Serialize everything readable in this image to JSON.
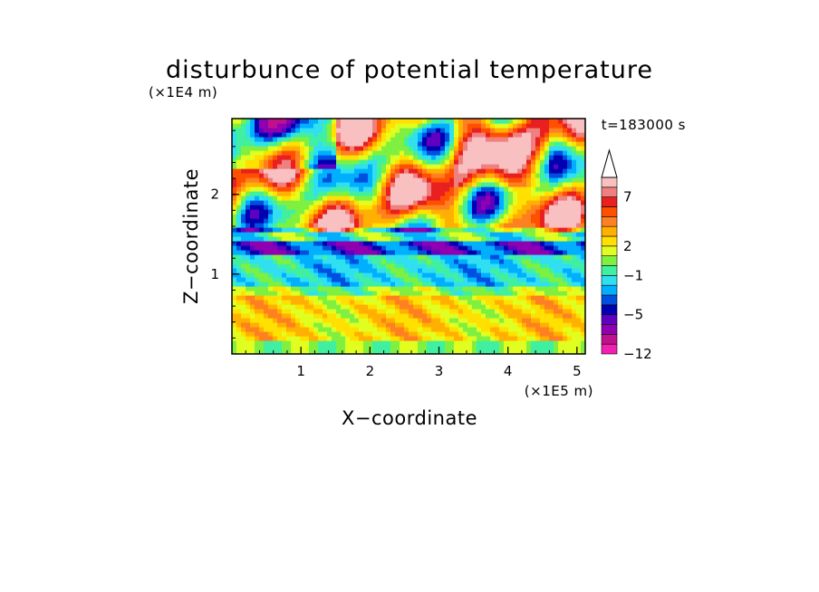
{
  "chart_data": {
    "type": "heatmap",
    "title": "disturbunce of potential temperature",
    "xlabel": "X−coordinate",
    "ylabel": "Z−coordinate",
    "x_unit": "(×1E5 m)",
    "y_unit": "(×1E4 m)",
    "time_label": "t=183000 s",
    "xlim": [
      0,
      5.12
    ],
    "ylim": [
      0,
      2.95
    ],
    "x_ticks": [
      1,
      2,
      3,
      4,
      5
    ],
    "x_tick_labels": [
      "1",
      "2",
      "3",
      "4",
      "5"
    ],
    "y_ticks": [
      1,
      2
    ],
    "y_tick_labels": [
      "1",
      "2"
    ],
    "colorbar": {
      "levels": [
        -12,
        -10,
        -8,
        -6,
        -5,
        -4,
        -3,
        -2,
        -1,
        0,
        1,
        2,
        3,
        4,
        5,
        6,
        7,
        8,
        9
      ],
      "colors": [
        "#f020b0",
        "#c01090",
        "#9000b0",
        "#6000c0",
        "#0000b0",
        "#0050e0",
        "#00b0ff",
        "#30e0f0",
        "#40f0a0",
        "#80f040",
        "#e0ff20",
        "#ffe000",
        "#ffb000",
        "#ff8020",
        "#ff5000",
        "#e82020",
        "#f08080",
        "#f8c0c0"
      ],
      "extend": "max",
      "tick_values": [
        -12,
        -5,
        -1,
        2,
        7
      ],
      "tick_labels": [
        "−12",
        "−5",
        "−1",
        "2",
        "7"
      ]
    },
    "field_description_bands": [
      {
        "z_from": 0.0,
        "z_to": 0.15,
        "dominant_value": 0.5
      },
      {
        "z_from": 0.15,
        "z_to": 0.75,
        "dominant_value": 2.5
      },
      {
        "z_from": 0.75,
        "z_to": 0.85,
        "dominant_value": 0.5
      },
      {
        "z_from": 0.85,
        "z_to": 1.25,
        "dominant_value": -1.5
      },
      {
        "z_from": 1.25,
        "z_to": 1.4,
        "dominant_value": -4.5
      },
      {
        "z_from": 1.4,
        "z_to": 1.6,
        "dominant_value": -0.5
      },
      {
        "z_from": 1.6,
        "z_to": 2.95,
        "dominant_value": 3.0
      }
    ]
  }
}
